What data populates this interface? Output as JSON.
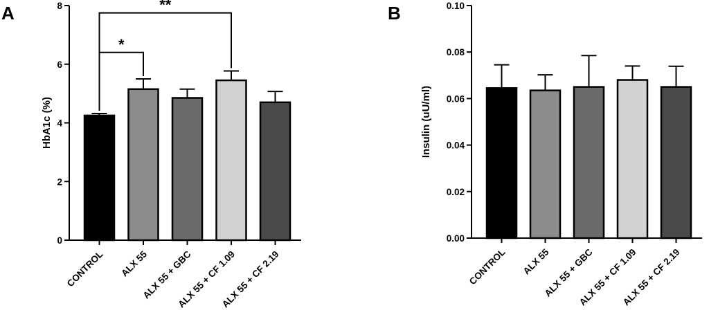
{
  "chart_data": [
    {
      "panel": "A",
      "type": "bar",
      "categories": [
        "CONTROL",
        "ALX 55",
        "ALX 55 + GBC",
        "ALX 55 + CF 1.09",
        "ALX 55 + CF 2.19"
      ],
      "values": [
        4.25,
        5.15,
        4.85,
        5.45,
        4.7
      ],
      "errors": [
        0.07,
        0.35,
        0.3,
        0.32,
        0.37
      ],
      "colors": [
        "#000000",
        "#8c8c8c",
        "#6b6b6b",
        "#d2d2d2",
        "#4a4a4a"
      ],
      "ylabel": "HbA1c (%)",
      "ylim": [
        0,
        8
      ],
      "yticks": [
        "0",
        "2",
        "4",
        "6",
        "8"
      ],
      "significance": [
        {
          "from": 0,
          "to": 1,
          "label": "*",
          "level": 6.4
        },
        {
          "from": 0,
          "to": 3,
          "label": "**",
          "level": 7.75
        }
      ],
      "grid": false,
      "legend": "none"
    },
    {
      "panel": "B",
      "type": "bar",
      "categories": [
        "CONTROL",
        "ALX 55",
        "ALX 55 + GBC",
        "ALX 55 + CF 1.09",
        "ALX 55 + CF 2.19"
      ],
      "values": [
        0.0645,
        0.0635,
        0.065,
        0.068,
        0.065
      ],
      "errors": [
        0.01,
        0.0067,
        0.0135,
        0.006,
        0.0089
      ],
      "colors": [
        "#000000",
        "#8c8c8c",
        "#6b6b6b",
        "#d2d2d2",
        "#4a4a4a"
      ],
      "ylabel": "Insulin (uU/ml)",
      "ylim": [
        0,
        0.1
      ],
      "yticks": [
        "0.00",
        "0.02",
        "0.04",
        "0.06",
        "0.08",
        "0.10"
      ],
      "grid": false,
      "legend": "none"
    }
  ]
}
